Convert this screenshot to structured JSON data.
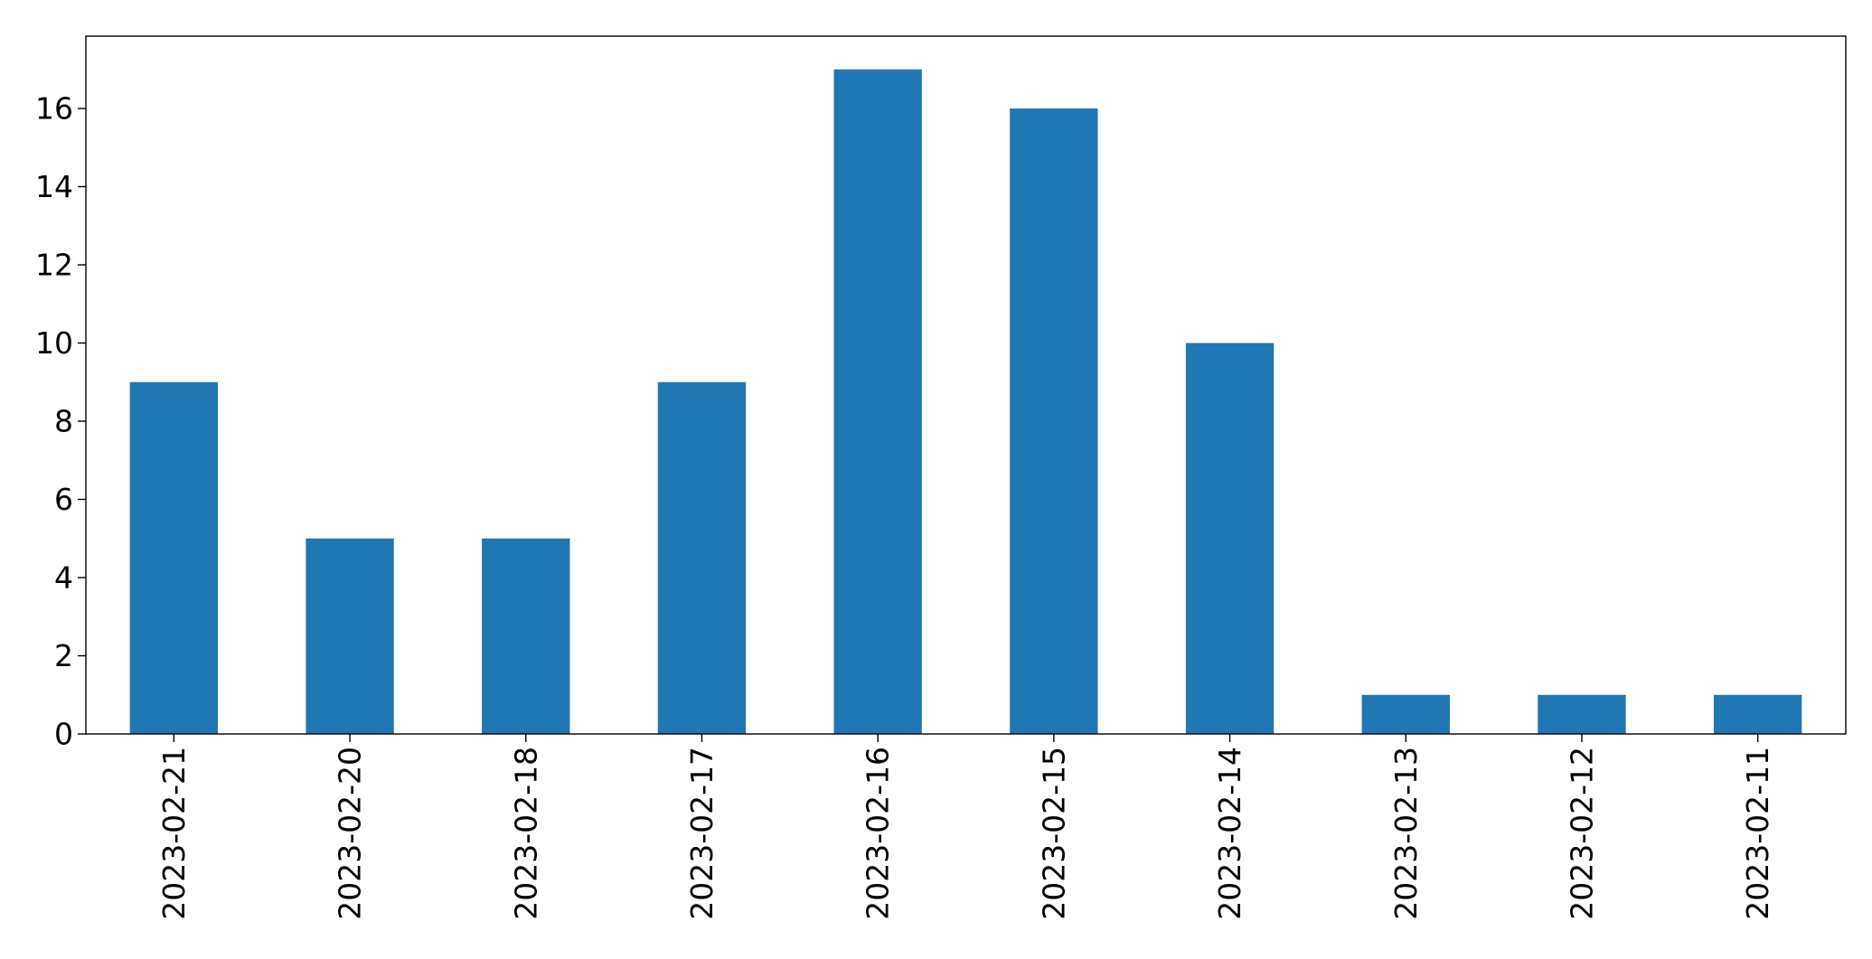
{
  "chart_data": {
    "type": "bar",
    "title": "",
    "xlabel": "",
    "ylabel": "",
    "categories": [
      "2023-02-21",
      "2023-02-20",
      "2023-02-18",
      "2023-02-17",
      "2023-02-16",
      "2023-02-15",
      "2023-02-14",
      "2023-02-13",
      "2023-02-12",
      "2023-02-11"
    ],
    "values": [
      9,
      5,
      5,
      9,
      17,
      16,
      10,
      1,
      1,
      1
    ],
    "ylim": [
      0,
      17.85
    ],
    "yticks": [
      0,
      2,
      4,
      6,
      8,
      10,
      12,
      14,
      16
    ],
    "grid": false,
    "legend": "none",
    "bar_color": "#1f77b4"
  }
}
